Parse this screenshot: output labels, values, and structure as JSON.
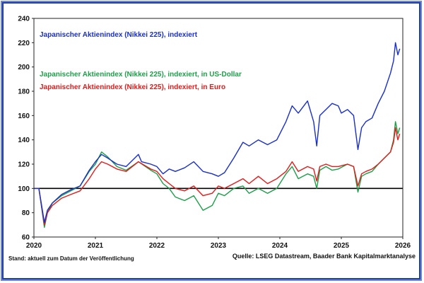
{
  "chart_data": {
    "type": "line",
    "title": "",
    "xlabel": "",
    "ylabel": "",
    "ylim": [
      60,
      240
    ],
    "y_ticks": [
      60,
      80,
      100,
      120,
      140,
      160,
      180,
      200,
      220,
      240
    ],
    "xlim": [
      2020.0,
      2026.0
    ],
    "x_ticks": [
      2020,
      2021,
      2022,
      2023,
      2024,
      2025,
      2026
    ],
    "reference_line": 100,
    "series": [
      {
        "name": "Japanischer Aktienindex (Nikkei 225), indexiert",
        "color": "#1a2fc8",
        "x": [
          2020.0,
          2020.08,
          2020.17,
          2020.22,
          2020.3,
          2020.45,
          2020.6,
          2020.75,
          2020.9,
          2021.0,
          2021.1,
          2021.2,
          2021.35,
          2021.5,
          2021.7,
          2021.75,
          2021.9,
          2022.0,
          2022.1,
          2022.2,
          2022.3,
          2022.45,
          2022.6,
          2022.75,
          2022.9,
          2023.0,
          2023.1,
          2023.25,
          2023.4,
          2023.5,
          2023.65,
          2023.8,
          2023.95,
          2024.1,
          2024.2,
          2024.3,
          2024.45,
          2024.55,
          2024.6,
          2024.65,
          2024.75,
          2024.85,
          2024.95,
          2025.0,
          2025.1,
          2025.2,
          2025.27,
          2025.33,
          2025.4,
          2025.5,
          2025.6,
          2025.7,
          2025.8,
          2025.85,
          2025.88,
          2025.92,
          2025.95
        ],
        "values": [
          100,
          100,
          72,
          82,
          88,
          95,
          99,
          102,
          115,
          122,
          128,
          125,
          120,
          118,
          128,
          122,
          120,
          118,
          112,
          116,
          114,
          117,
          122,
          114,
          112,
          110,
          113,
          125,
          138,
          135,
          140,
          136,
          140,
          155,
          168,
          162,
          172,
          155,
          135,
          160,
          165,
          170,
          168,
          162,
          165,
          160,
          132,
          150,
          155,
          158,
          170,
          180,
          195,
          205,
          220,
          210,
          215
        ]
      },
      {
        "name": "Japanischer Aktienindex (Nikkei 225), indexiert, in US-Dollar",
        "color": "#1e9e4a",
        "x": [
          2020.0,
          2020.08,
          2020.17,
          2020.22,
          2020.3,
          2020.45,
          2020.6,
          2020.75,
          2020.9,
          2021.0,
          2021.1,
          2021.2,
          2021.35,
          2021.5,
          2021.7,
          2021.9,
          2022.0,
          2022.1,
          2022.2,
          2022.3,
          2022.45,
          2022.6,
          2022.75,
          2022.9,
          2023.0,
          2023.1,
          2023.25,
          2023.4,
          2023.5,
          2023.65,
          2023.8,
          2023.95,
          2024.1,
          2024.2,
          2024.3,
          2024.45,
          2024.55,
          2024.6,
          2024.65,
          2024.75,
          2024.85,
          2024.95,
          2025.1,
          2025.2,
          2025.27,
          2025.33,
          2025.4,
          2025.5,
          2025.6,
          2025.7,
          2025.8,
          2025.85,
          2025.88,
          2025.92,
          2025.95
        ],
        "values": [
          100,
          100,
          68,
          80,
          88,
          94,
          98,
          102,
          114,
          120,
          130,
          126,
          118,
          115,
          122,
          115,
          112,
          104,
          100,
          93,
          90,
          94,
          82,
          86,
          96,
          94,
          100,
          102,
          96,
          100,
          96,
          100,
          112,
          118,
          108,
          112,
          110,
          100,
          115,
          118,
          115,
          116,
          120,
          118,
          97,
          110,
          112,
          114,
          120,
          125,
          130,
          140,
          155,
          145,
          150
        ]
      },
      {
        "name": "Japanischer Aktienindex (Nikkei 225), indexiert, in Euro",
        "color": "#e01b1b",
        "x": [
          2020.0,
          2020.08,
          2020.17,
          2020.22,
          2020.3,
          2020.45,
          2020.6,
          2020.75,
          2020.9,
          2021.0,
          2021.1,
          2021.2,
          2021.35,
          2021.5,
          2021.7,
          2021.9,
          2022.0,
          2022.1,
          2022.2,
          2022.3,
          2022.45,
          2022.6,
          2022.75,
          2022.9,
          2023.0,
          2023.1,
          2023.25,
          2023.4,
          2023.5,
          2023.65,
          2023.8,
          2023.95,
          2024.1,
          2024.2,
          2024.3,
          2024.45,
          2024.55,
          2024.6,
          2024.65,
          2024.75,
          2024.85,
          2024.95,
          2025.1,
          2025.2,
          2025.27,
          2025.33,
          2025.4,
          2025.5,
          2025.6,
          2025.7,
          2025.8,
          2025.85,
          2025.88,
          2025.92,
          2025.95
        ],
        "values": [
          100,
          100,
          70,
          80,
          86,
          92,
          95,
          98,
          108,
          116,
          122,
          120,
          116,
          114,
          122,
          116,
          114,
          108,
          104,
          100,
          98,
          102,
          94,
          96,
          102,
          100,
          104,
          108,
          104,
          110,
          104,
          108,
          114,
          122,
          114,
          118,
          116,
          106,
          118,
          120,
          118,
          118,
          120,
          118,
          102,
          112,
          114,
          116,
          120,
          125,
          130,
          138,
          150,
          140,
          145
        ]
      }
    ]
  },
  "footer": {
    "stand": "Stand: aktuell zum Datum der Veröffentlichung",
    "quelle": "Quelle: LSEG Datastream, Baader Bank Kapitalmarktanalyse"
  }
}
